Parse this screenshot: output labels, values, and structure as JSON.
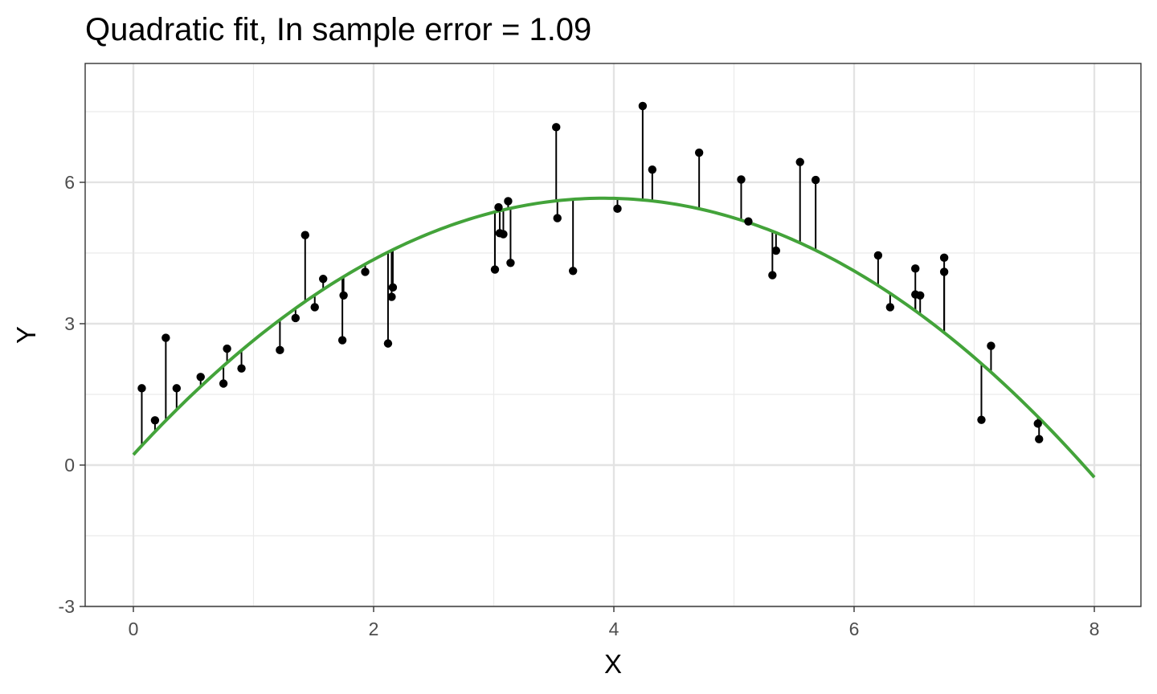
{
  "chart_data": {
    "type": "scatter",
    "title": "Quadratic fit, In sample error = 1.09",
    "xlabel": "X",
    "ylabel": "Y",
    "xlim": [
      -0.4,
      8.4
    ],
    "ylim": [
      -3,
      8.5
    ],
    "x_ticks": [
      0,
      2,
      4,
      6,
      8
    ],
    "y_ticks": [
      -3,
      0,
      3,
      6
    ],
    "x_tick_labels": [
      "0",
      "2",
      "4",
      "6",
      "8"
    ],
    "y_tick_labels": [
      "-3",
      "0",
      "3",
      "6"
    ],
    "grid": true,
    "fit": {
      "type": "quadratic",
      "coefficients": [
        0.22,
        2.78,
        -0.355
      ],
      "x_range": [
        0,
        8
      ],
      "color": "#43a33a"
    },
    "points": {
      "color": "#000000",
      "x": [
        0.07,
        0.18,
        0.27,
        0.36,
        0.56,
        0.75,
        0.78,
        0.9,
        1.22,
        1.35,
        1.43,
        1.51,
        1.58,
        1.74,
        1.75,
        1.93,
        2.12,
        2.15,
        2.16,
        3.01,
        3.04,
        3.05,
        3.08,
        3.12,
        3.14,
        3.52,
        3.53,
        3.66,
        4.03,
        4.24,
        4.32,
        4.71,
        5.06,
        5.12,
        5.32,
        5.35,
        5.55,
        5.68,
        6.2,
        6.3,
        6.51,
        6.51,
        6.55,
        6.75,
        6.75,
        7.06,
        7.14,
        7.53,
        7.54
      ],
      "y": [
        1.63,
        0.95,
        2.7,
        1.63,
        1.87,
        1.73,
        2.47,
        2.05,
        2.44,
        3.12,
        4.88,
        3.35,
        3.95,
        2.65,
        3.6,
        4.1,
        2.58,
        3.57,
        3.77,
        4.15,
        5.47,
        4.92,
        4.9,
        5.6,
        4.29,
        7.17,
        5.24,
        4.12,
        5.44,
        7.62,
        6.27,
        6.63,
        6.06,
        5.17,
        4.03,
        4.55,
        6.43,
        6.05,
        4.45,
        3.35,
        4.17,
        3.62,
        3.6,
        4.4,
        4.1,
        0.96,
        2.53,
        0.88,
        0.55
      ]
    }
  }
}
